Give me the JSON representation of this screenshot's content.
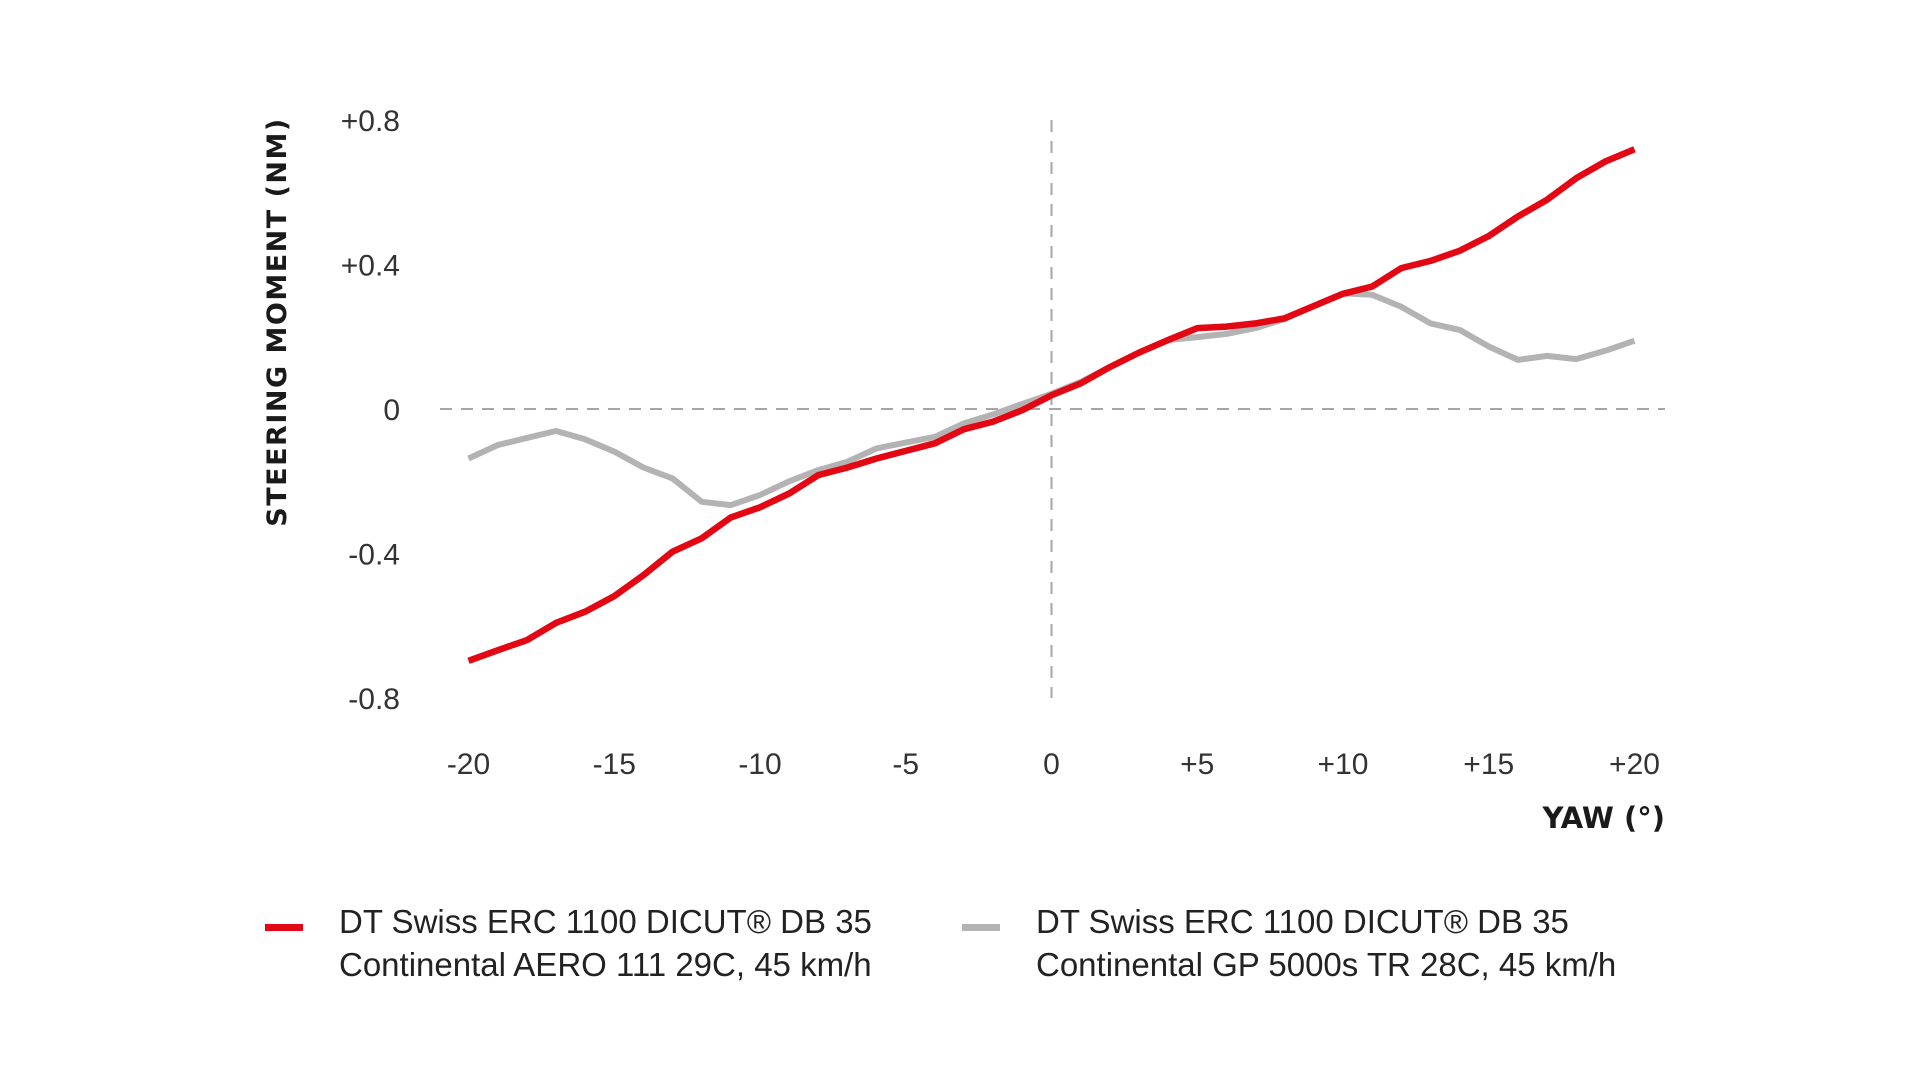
{
  "chart_data": {
    "type": "line",
    "title": "",
    "xlabel": "YAW (°)",
    "ylabel": "STEERING MOMENT (NM)",
    "xlim": [
      -20,
      20
    ],
    "ylim": [
      -0.8,
      0.8
    ],
    "xticks": [
      -20,
      -15,
      -10,
      -5,
      0,
      5,
      10,
      15,
      20
    ],
    "xtick_labels": [
      "-20",
      "-15",
      "-10",
      "-5",
      "0",
      "+5",
      "+10",
      "+15",
      "+20"
    ],
    "yticks": [
      0.8,
      0.4,
      0,
      -0.4,
      -0.8
    ],
    "ytick_labels": [
      "+0.8",
      "+0.4",
      "0",
      "-0.4",
      "-0.8"
    ],
    "grid": false,
    "reference_lines": {
      "x": 0,
      "y": 0,
      "style": "dashed"
    },
    "legend_position": "bottom",
    "x": [
      -20,
      -19,
      -18,
      -17,
      -16,
      -15,
      -14,
      -13,
      -12,
      -11,
      -10,
      -9,
      -8,
      -7,
      -6,
      -5,
      -4,
      -3,
      -2,
      -1,
      0,
      1,
      2,
      3,
      4,
      5,
      6,
      7,
      8,
      9,
      10,
      11,
      12,
      13,
      14,
      15,
      16,
      17,
      18,
      19,
      20
    ],
    "series": [
      {
        "name": "DT Swiss ERC 1100 DICUT® DB 35 Continental GP 5000s TR 28C, 45 km/h",
        "color": "#b3b3b3",
        "values": [
          -0.137,
          -0.1,
          -0.08,
          -0.061,
          -0.084,
          -0.118,
          -0.162,
          -0.192,
          -0.257,
          -0.266,
          -0.238,
          -0.2,
          -0.169,
          -0.146,
          -0.109,
          -0.093,
          -0.077,
          -0.04,
          -0.015,
          0.014,
          0.042,
          0.075,
          0.116,
          0.156,
          0.191,
          0.199,
          0.208,
          0.224,
          0.249,
          0.285,
          0.32,
          0.316,
          0.283,
          0.237,
          0.219,
          0.173,
          0.136,
          0.147,
          0.138,
          0.161,
          0.189
        ]
      },
      {
        "name": "DT Swiss ERC 1100 DICUT® DB 35 Continental AERO 111 29C, 45 km/h",
        "color": "#e30613",
        "values": [
          -0.697,
          -0.668,
          -0.64,
          -0.592,
          -0.561,
          -0.518,
          -0.46,
          -0.395,
          -0.358,
          -0.3,
          -0.272,
          -0.234,
          -0.183,
          -0.162,
          -0.137,
          -0.116,
          -0.095,
          -0.056,
          -0.035,
          -0.003,
          0.038,
          0.071,
          0.116,
          0.156,
          0.191,
          0.224,
          0.228,
          0.237,
          0.251,
          0.285,
          0.319,
          0.339,
          0.39,
          0.41,
          0.438,
          0.479,
          0.533,
          0.579,
          0.639,
          0.685,
          0.719
        ]
      }
    ]
  },
  "legend": [
    {
      "line1": "DT Swiss ERC 1100 DICUT® DB 35",
      "line2": "Continental AERO 111 29C, 45 km/h",
      "color": "#e30613"
    },
    {
      "line1": "DT Swiss ERC 1100 DICUT® DB 35",
      "line2": "Continental GP 5000s TR 28C, 45 km/h",
      "color": "#b3b3b3"
    }
  ]
}
